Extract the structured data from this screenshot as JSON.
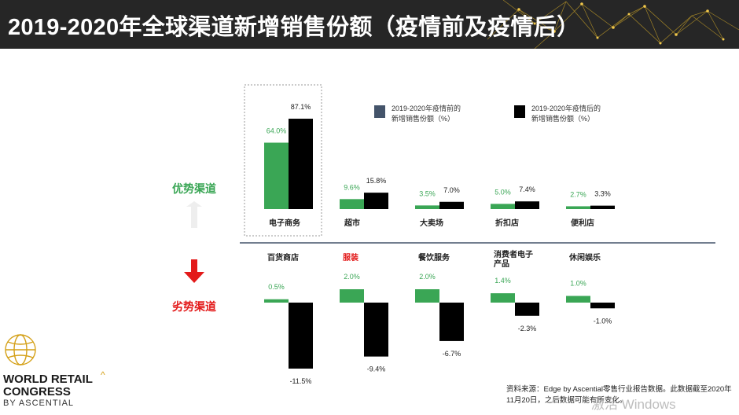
{
  "header": {
    "title": "2019-2020年全球渠道新增销售份额（疫情前及疫情后）"
  },
  "colors": {
    "pre_series": "#3aa655",
    "post_series": "#000000",
    "legend_pre": "#44546a",
    "advantage_label": "#3aa655",
    "disadvantage_label": "#e31a1a",
    "down_arrow": "#e31a1a",
    "up_arrow": "#eeeeee"
  },
  "sections": {
    "advantage_label": "优势渠道",
    "disadvantage_label": "劣势渠道"
  },
  "legend": {
    "pre": "2019-2020年疫情前的新增销售份额（%）",
    "post": "2019-2020年疫情后的新增销售份额（%）"
  },
  "chart_data": {
    "type": "bar",
    "series": [
      {
        "name": "2019-2020年疫情前的新增销售份额（%）"
      },
      {
        "name": "2019-2020年疫情后的新增销售份额（%）"
      }
    ],
    "groups": [
      {
        "section": "advantage",
        "categories": [
          "电子商务",
          "超市",
          "大卖场",
          "折扣店",
          "便利店"
        ],
        "pre": [
          64.0,
          9.6,
          3.5,
          5.0,
          2.7
        ],
        "post": [
          87.1,
          15.8,
          7.0,
          7.4,
          3.3
        ],
        "pre_labels": [
          "64.0%",
          "9.6%",
          "3.5%",
          "5.0%",
          "2.7%"
        ],
        "post_labels": [
          "87.1%",
          "15.8%",
          "7.0%",
          "7.4%",
          "3.3%"
        ]
      },
      {
        "section": "disadvantage",
        "categories": [
          "百货商店",
          "服装",
          "餐饮服务",
          "消费者电子产品",
          "休闲娱乐"
        ],
        "pre": [
          0.5,
          2.0,
          2.0,
          1.4,
          1.0
        ],
        "post": [
          -11.5,
          -9.4,
          -6.7,
          -2.3,
          -1.0
        ],
        "pre_labels": [
          "0.5%",
          "2.0%",
          "2.0%",
          "1.4%",
          "1.0%"
        ],
        "post_labels": [
          "-11.5%",
          "-9.4%",
          "-6.7%",
          "-2.3%",
          "-1.0%"
        ]
      }
    ],
    "highlighted_categories": [
      "服装"
    ],
    "boxed_category": "电子商务"
  },
  "logo": {
    "line1": "WORLD RETAIL",
    "line2": "CONGRESS",
    "by": "BY ASCENTIAL"
  },
  "source": "资料来源：Edge by Ascential零售行业报告数据。此数据截至2020年11月20日，之后数据可能有所变化。",
  "watermark": "激活 Windows"
}
